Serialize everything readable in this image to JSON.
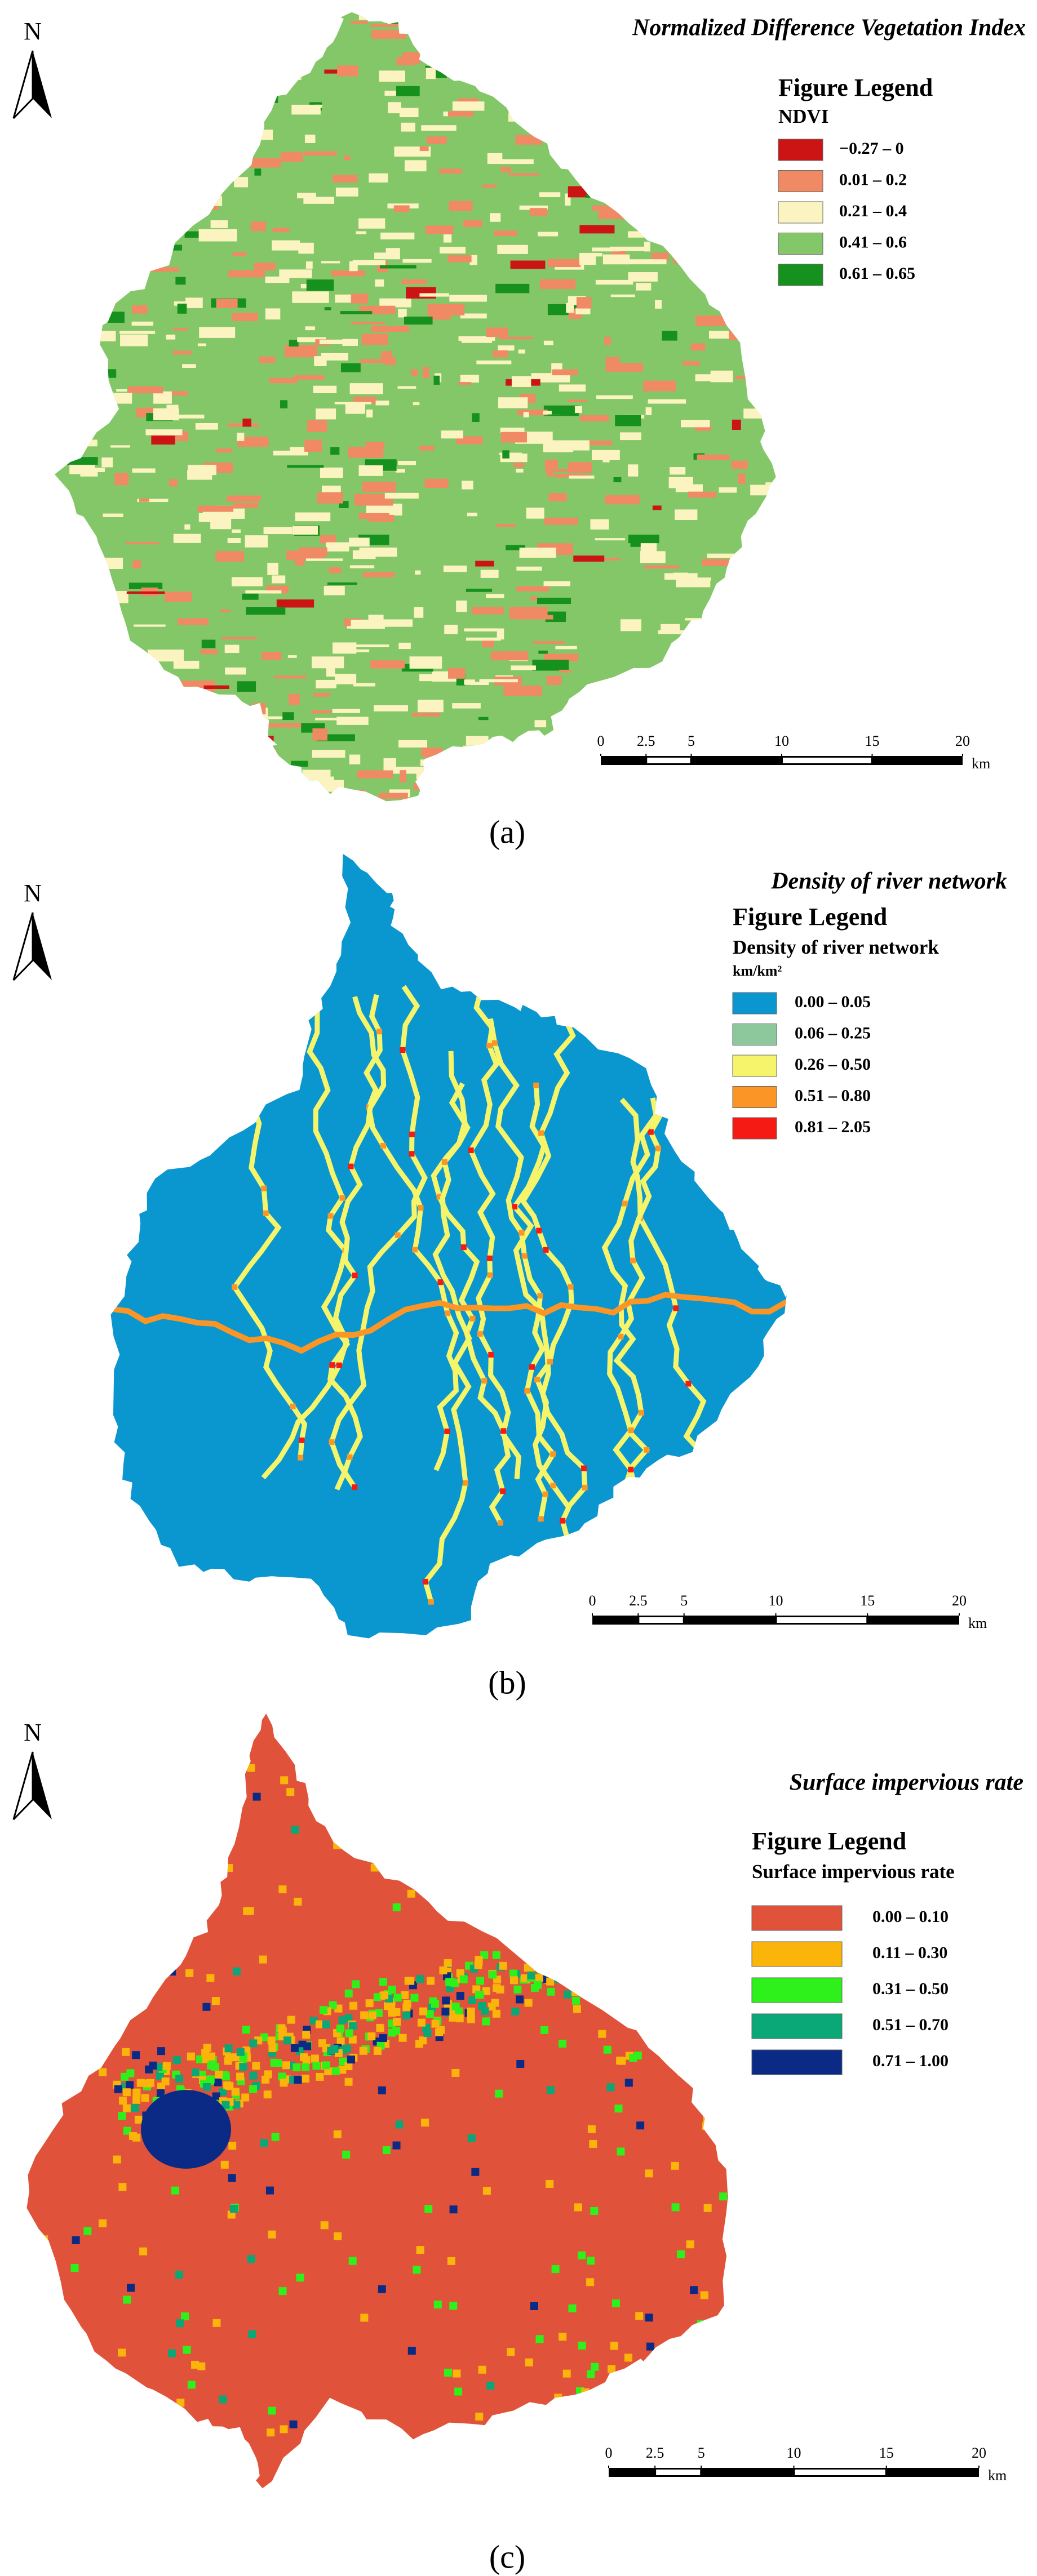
{
  "panels": [
    {
      "north": "N",
      "title": "Normalized Difference Vegetation Index",
      "legend_title": "Figure Legend",
      "legend_subtitle": "NDVI",
      "legend": [
        {
          "label": "−0.27 – 0",
          "color": "#cc1414"
        },
        {
          "label": "0.01 – 0.2",
          "color": "#f08a64"
        },
        {
          "label": "0.21 – 0.4",
          "color": "#fbf4c0"
        },
        {
          "label": "0.41 – 0.6",
          "color": "#84c768"
        },
        {
          "label": "0.61 – 0.65",
          "color": "#16911e"
        }
      ],
      "scale_ticks": [
        0,
        2.5,
        5,
        10,
        15,
        20
      ],
      "scale_unit": "km",
      "caption": "(a)"
    },
    {
      "north": "N",
      "title": "Density of river network",
      "legend_title": "Figure Legend",
      "legend_subtitle": "Density of river network",
      "legend_unit": "km/km²",
      "legend": [
        {
          "label": "0.00 – 0.05",
          "color": "#0a96cf"
        },
        {
          "label": "0.06 – 0.25",
          "color": "#8cc89c"
        },
        {
          "label": "0.26 – 0.50",
          "color": "#f6f46a"
        },
        {
          "label": "0.51 – 0.80",
          "color": "#fb9526"
        },
        {
          "label": "0.81 – 2.05",
          "color": "#f51a14"
        }
      ],
      "scale_ticks": [
        0,
        2.5,
        5,
        10,
        15,
        20
      ],
      "scale_unit": "km",
      "caption": "(b)"
    },
    {
      "north": "N",
      "title": "Surface impervious rate",
      "legend_title": "Figure Legend",
      "legend_subtitle": "Surface impervious rate",
      "legend": [
        {
          "label": "0.00 – 0.10",
          "color": "#e0533a"
        },
        {
          "label": "0.11 – 0.30",
          "color": "#fbb40a"
        },
        {
          "label": "0.31 – 0.50",
          "color": "#2ef01a"
        },
        {
          "label": "0.51 – 0.70",
          "color": "#0aa876"
        },
        {
          "label": "0.71 – 1.00",
          "color": "#0a2a86"
        }
      ],
      "scale_ticks": [
        0,
        2.5,
        5,
        10,
        15,
        20
      ],
      "scale_unit": "km",
      "caption": "(c)"
    }
  ]
}
